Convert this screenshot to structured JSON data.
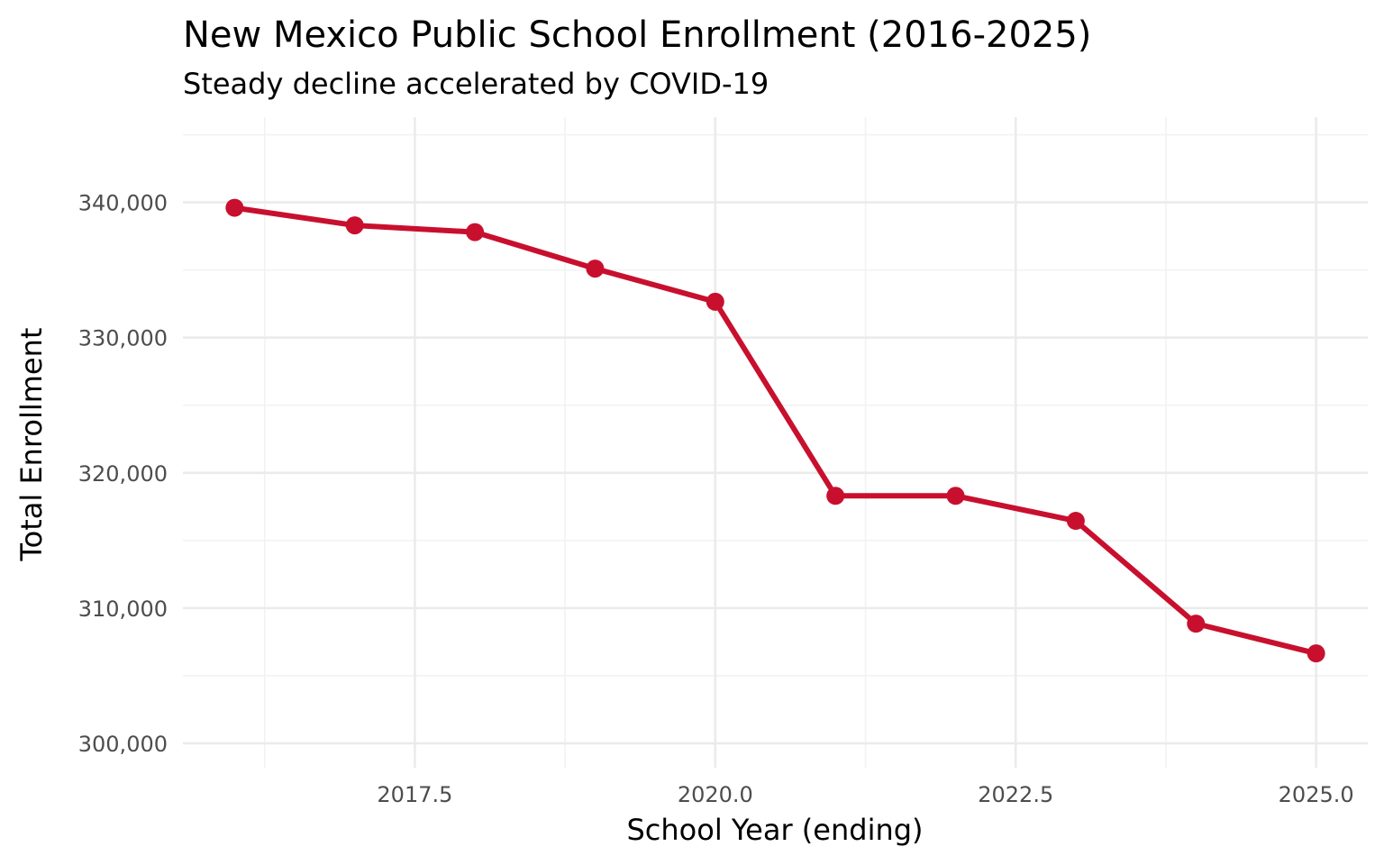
{
  "chart_data": {
    "type": "line",
    "title": "New Mexico Public School Enrollment (2016-2025)",
    "subtitle": "Steady decline accelerated by COVID-19",
    "xlabel": "School Year (ending)",
    "ylabel": "Total Enrollment",
    "x": [
      2016,
      2017,
      2018,
      2019,
      2020,
      2021,
      2022,
      2023,
      2024,
      2025
    ],
    "series": [
      {
        "values": [
          339600,
          338300,
          337800,
          335100,
          332650,
          318300,
          318300,
          316450,
          308850,
          306650
        ],
        "color": "#c8102e"
      }
    ],
    "xlim": [
      2015.57,
      2025.43
    ],
    "ylim": [
      298200,
      346300
    ],
    "x_ticks": [
      2017.5,
      2020.0,
      2022.5,
      2025.0
    ],
    "x_tick_labels": [
      "2017.5",
      "2020.0",
      "2022.5",
      "2025.0"
    ],
    "y_ticks": [
      300000,
      310000,
      320000,
      330000,
      340000
    ],
    "y_tick_labels": [
      "300,000",
      "310,000",
      "320,000",
      "330,000",
      "340,000"
    ],
    "grid": true,
    "legend": "none"
  }
}
